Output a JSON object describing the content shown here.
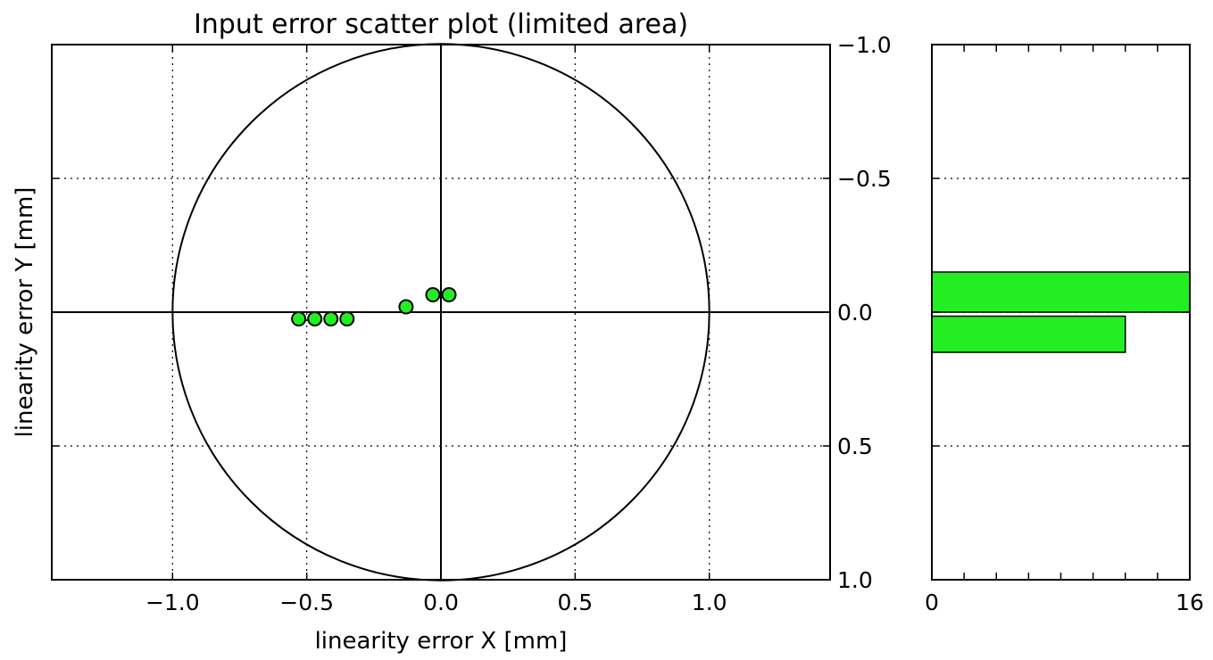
{
  "chart_data": [
    {
      "type": "scatter",
      "title": "Input error scatter plot (limited area)",
      "xlabel": "linearity error X [mm]",
      "ylabel": "linearity error Y [mm]",
      "xlim": [
        -1.45,
        1.45
      ],
      "ylim": [
        1.0,
        -1.0
      ],
      "y_inverted": true,
      "x_ticks": [
        -1.0,
        -0.5,
        0.0,
        0.5,
        1.0
      ],
      "x_tick_labels": [
        "−1.0",
        "−0.5",
        "0.0",
        "0.5",
        "1.0"
      ],
      "y_ticks": [
        -1.0,
        -0.5,
        0.0,
        0.5,
        1.0
      ],
      "y_tick_labels": [
        "−1.0",
        "−0.5",
        "0.0",
        "0.5",
        "1.0"
      ],
      "y_axis_side": "right",
      "grid": true,
      "grid_style": "dotted",
      "reference_circle_radius": 1.0,
      "reference_lines": {
        "x": 0.0,
        "y": 0.0
      },
      "marker_color": "#22ee22",
      "points": [
        {
          "x": -0.53,
          "y": 0.025
        },
        {
          "x": -0.47,
          "y": 0.025
        },
        {
          "x": -0.41,
          "y": 0.025
        },
        {
          "x": -0.35,
          "y": 0.025
        },
        {
          "x": -0.13,
          "y": -0.02
        },
        {
          "x": -0.03,
          "y": -0.065
        },
        {
          "x": 0.03,
          "y": -0.065
        }
      ]
    },
    {
      "type": "bar",
      "orientation": "horizontal",
      "xlim": [
        0,
        16
      ],
      "x_tick_labels": [
        "0",
        "16"
      ],
      "ylim": [
        1.0,
        -1.0
      ],
      "bar_color": "#22ee22",
      "bars": [
        {
          "y_from": -0.15,
          "y_to": 0.0,
          "value": 16
        },
        {
          "y_from": 0.015,
          "y_to": 0.15,
          "value": 12
        }
      ]
    }
  ]
}
